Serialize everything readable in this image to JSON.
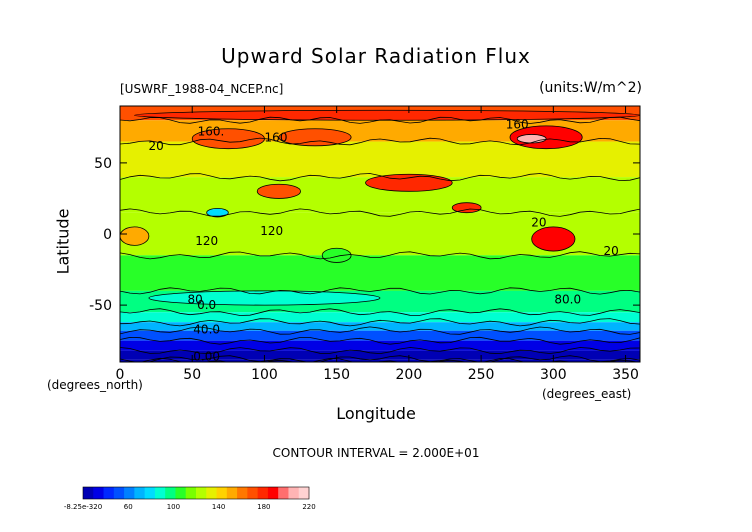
{
  "chart_data": {
    "type": "heatmap",
    "title": "Upward Solar Radiation Flux",
    "subtitle_left": "[USWRF_1988-04_NCEP.nc]",
    "subtitle_right": "(units:W/m^2)",
    "xlabel": "Longitude",
    "ylabel": "Latitude",
    "x_units": "(degrees_north)",
    "y_units": "(degrees_east)",
    "xlim": [
      0,
      360
    ],
    "ylim": [
      -90,
      90
    ],
    "x_ticks": [
      0,
      50,
      100,
      150,
      200,
      250,
      300,
      350
    ],
    "y_ticks": [
      -50,
      0,
      50
    ],
    "contour_interval": "CONTOUR INTERVAL = 2.000E+01",
    "contour_labels": [
      {
        "text": "160.",
        "x": 63,
        "y": 72
      },
      {
        "text": "160",
        "x": 108,
        "y": 68
      },
      {
        "text": "160",
        "x": 275,
        "y": 77
      },
      {
        "text": "20",
        "x": 25,
        "y": 62
      },
      {
        "text": "120",
        "x": 60,
        "y": -5
      },
      {
        "text": "120",
        "x": 105,
        "y": 2
      },
      {
        "text": "20",
        "x": 290,
        "y": 8
      },
      {
        "text": "20",
        "x": 340,
        "y": -12
      },
      {
        "text": "80",
        "x": 52,
        "y": -46
      },
      {
        "text": "0.0",
        "x": 60,
        "y": -50
      },
      {
        "text": "80.0",
        "x": 310,
        "y": -46
      },
      {
        "text": "40.0",
        "x": 60,
        "y": -67
      },
      {
        "text": "0.00",
        "x": 60,
        "y": -86
      }
    ],
    "lat_bands": [
      {
        "lat": [
          80,
          90
        ],
        "value": 162
      },
      {
        "lat": [
          65,
          80
        ],
        "value": 140
      },
      {
        "lat": [
          40,
          65
        ],
        "value": 125
      },
      {
        "lat": [
          15,
          40
        ],
        "value": 110
      },
      {
        "lat": [
          -15,
          15
        ],
        "value": 118
      },
      {
        "lat": [
          -40,
          -15
        ],
        "value": 98
      },
      {
        "lat": [
          -55,
          -40
        ],
        "value": 88
      },
      {
        "lat": [
          -62,
          -55
        ],
        "value": 70
      },
      {
        "lat": [
          -68,
          -62
        ],
        "value": 55
      },
      {
        "lat": [
          -75,
          -68
        ],
        "value": 35
      },
      {
        "lat": [
          -82,
          -75
        ],
        "value": 15
      },
      {
        "lat": [
          -88,
          -82
        ],
        "value": 5
      },
      {
        "lat": [
          -90,
          -88
        ],
        "value": 0
      }
    ],
    "hotspots": [
      {
        "lon": [
          10,
          360
        ],
        "lat": [
          80,
          87
        ],
        "value": 170
      },
      {
        "lon": [
          50,
          100
        ],
        "lat": [
          60,
          74
        ],
        "value": 165
      },
      {
        "lon": [
          110,
          160
        ],
        "lat": [
          62,
          74
        ],
        "value": 160
      },
      {
        "lon": [
          270,
          320
        ],
        "lat": [
          60,
          76
        ],
        "value": 180
      },
      {
        "lon": [
          275,
          295
        ],
        "lat": [
          64,
          70
        ],
        "value": 200
      },
      {
        "lon": [
          170,
          230
        ],
        "lat": [
          30,
          42
        ],
        "value": 175
      },
      {
        "lon": [
          230,
          250
        ],
        "lat": [
          15,
          22
        ],
        "value": 170
      },
      {
        "lon": [
          285,
          315
        ],
        "lat": [
          -12,
          5
        ],
        "value": 180
      },
      {
        "lon": [
          95,
          125
        ],
        "lat": [
          25,
          35
        ],
        "value": 160
      },
      {
        "lon": [
          60,
          75
        ],
        "lat": [
          12,
          18
        ],
        "value": 60
      },
      {
        "lon": [
          0,
          20
        ],
        "lat": [
          -8,
          5
        ],
        "value": 140
      },
      {
        "lon": [
          140,
          160
        ],
        "lat": [
          -20,
          -10
        ],
        "value": 90
      },
      {
        "lon": [
          20,
          180
        ],
        "lat": [
          -50,
          -40
        ],
        "value": 75
      }
    ],
    "colorbar": {
      "tick_labels": [
        "-8.25e-320",
        "60",
        "100",
        "140",
        "180",
        "220"
      ],
      "colors": [
        "#0000b4",
        "#0000e6",
        "#0028ff",
        "#0050ff",
        "#0080ff",
        "#00b4ff",
        "#00dcff",
        "#00ffd2",
        "#00ff82",
        "#28ff28",
        "#78ff00",
        "#b4ff00",
        "#e6f000",
        "#ffd200",
        "#ffaa00",
        "#ff7800",
        "#ff5000",
        "#ff2800",
        "#ff0000",
        "#ff6e6e",
        "#ffb4b4",
        "#ffd2d2"
      ]
    }
  }
}
